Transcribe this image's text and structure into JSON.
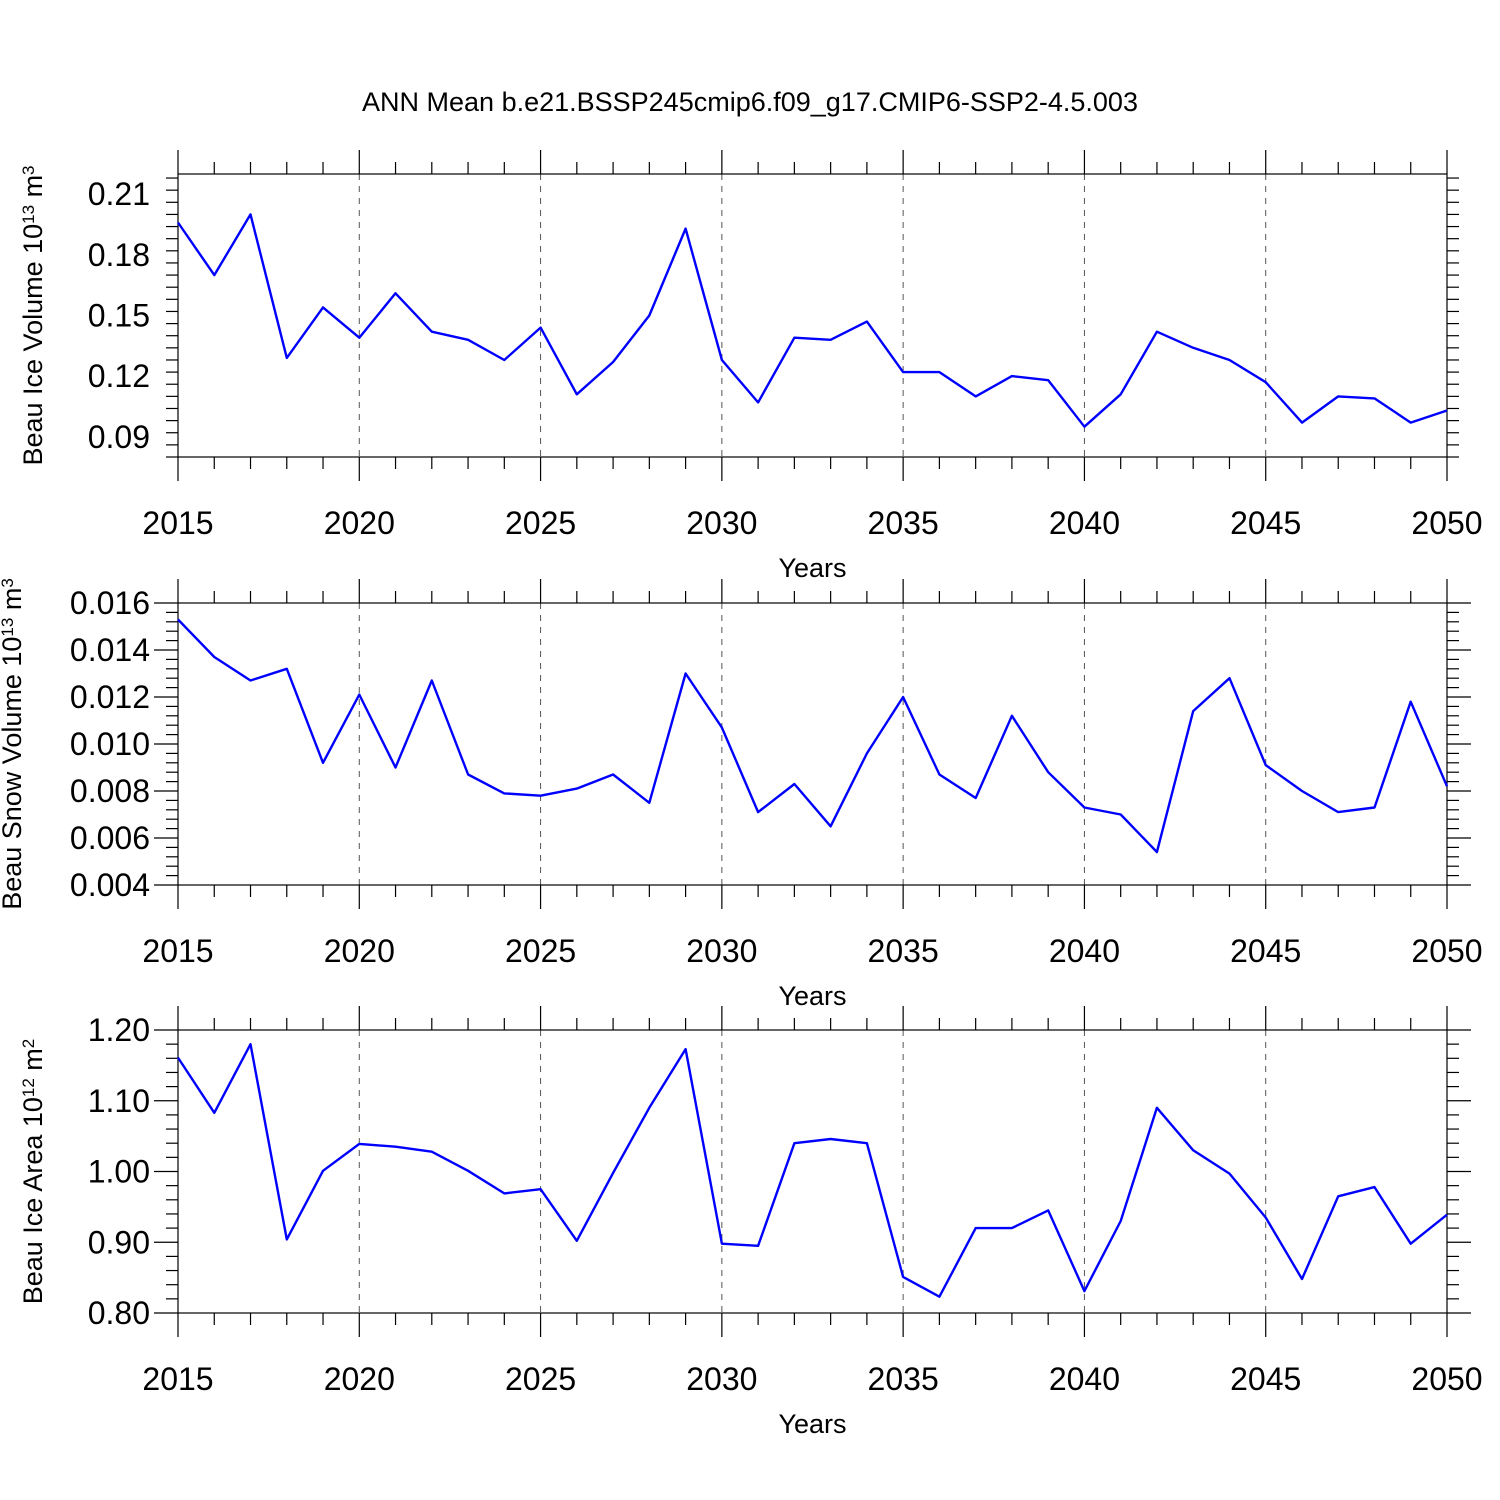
{
  "title": "ANN Mean b.e21.BSSP245cmip6.f09_g17.CMIP6-SSP2-4.5.003",
  "colors": {
    "line": "#0000ff",
    "grid": "#555555",
    "axis": "#000000"
  },
  "chart_data": [
    {
      "type": "line",
      "xlabel": "Years",
      "ylabel": "Beau Ice Volume 10",
      "ylabel_exp": "13",
      "ylabel_unit": " m",
      "ylabel_unit_exp": "3",
      "xlim": [
        2015,
        2050
      ],
      "ylim": [
        0.08,
        0.22
      ],
      "yticks": [
        0.09,
        0.12,
        0.15,
        0.18,
        0.21
      ],
      "yticklabels": [
        "0.09",
        "0.12",
        "0.15",
        "0.18",
        "0.21"
      ],
      "xticks": [
        2015,
        2020,
        2025,
        2030,
        2035,
        2040,
        2045,
        2050
      ],
      "xticklabels": [
        "2015",
        "2020",
        "2025",
        "2030",
        "2035",
        "2040",
        "2045",
        "2050"
      ],
      "grid": "vertical dashed at major x ticks",
      "x": [
        2015,
        2016,
        2017,
        2018,
        2019,
        2020,
        2021,
        2022,
        2023,
        2024,
        2025,
        2026,
        2027,
        2028,
        2029,
        2030,
        2031,
        2032,
        2033,
        2034,
        2035,
        2036,
        2037,
        2038,
        2039,
        2040,
        2041,
        2042,
        2043,
        2044,
        2045,
        2046,
        2047,
        2048,
        2049,
        2050
      ],
      "values": [
        0.196,
        0.17,
        0.2,
        0.129,
        0.154,
        0.139,
        0.161,
        0.142,
        0.138,
        0.128,
        0.144,
        0.111,
        0.127,
        0.15,
        0.193,
        0.128,
        0.107,
        0.139,
        0.138,
        0.147,
        0.122,
        0.122,
        0.11,
        0.12,
        0.118,
        0.095,
        0.111,
        0.142,
        0.134,
        0.128,
        0.117,
        0.097,
        0.11,
        0.109,
        0.097,
        0.103
      ]
    },
    {
      "type": "line",
      "xlabel": "Years",
      "ylabel": "Beau Snow Volume 10",
      "ylabel_exp": "13",
      "ylabel_unit": " m",
      "ylabel_unit_exp": "3",
      "xlim": [
        2015,
        2050
      ],
      "ylim": [
        0.004,
        0.016
      ],
      "yticks": [
        0.004,
        0.006,
        0.008,
        0.01,
        0.012,
        0.014,
        0.016
      ],
      "yticklabels": [
        "0.004",
        "0.006",
        "0.008",
        "0.010",
        "0.012",
        "0.014",
        "0.016"
      ],
      "xticks": [
        2015,
        2020,
        2025,
        2030,
        2035,
        2040,
        2045,
        2050
      ],
      "xticklabels": [
        "2015",
        "2020",
        "2025",
        "2030",
        "2035",
        "2040",
        "2045",
        "2050"
      ],
      "grid": "vertical dashed at major x ticks",
      "x": [
        2015,
        2016,
        2017,
        2018,
        2019,
        2020,
        2021,
        2022,
        2023,
        2024,
        2025,
        2026,
        2027,
        2028,
        2029,
        2030,
        2031,
        2032,
        2033,
        2034,
        2035,
        2036,
        2037,
        2038,
        2039,
        2040,
        2041,
        2042,
        2043,
        2044,
        2045,
        2046,
        2047,
        2048,
        2049,
        2050
      ],
      "values": [
        0.0153,
        0.0137,
        0.0127,
        0.0132,
        0.0092,
        0.0121,
        0.009,
        0.0127,
        0.0087,
        0.0079,
        0.0078,
        0.0081,
        0.0087,
        0.0075,
        0.013,
        0.0107,
        0.0071,
        0.0083,
        0.0065,
        0.0096,
        0.012,
        0.0087,
        0.0077,
        0.0112,
        0.0088,
        0.0073,
        0.007,
        0.0054,
        0.0114,
        0.0128,
        0.0091,
        0.008,
        0.0071,
        0.0073,
        0.0118,
        0.0082
      ]
    },
    {
      "type": "line",
      "xlabel": "Years",
      "ylabel": "Beau Ice Area 10",
      "ylabel_exp": "12",
      "ylabel_unit": " m",
      "ylabel_unit_exp": "2",
      "xlim": [
        2015,
        2050
      ],
      "ylim": [
        0.8,
        1.2
      ],
      "yticks": [
        0.8,
        0.9,
        1.0,
        1.1,
        1.2
      ],
      "yticklabels": [
        "0.80",
        "0.90",
        "1.00",
        "1.10",
        "1.20"
      ],
      "xticks": [
        2015,
        2020,
        2025,
        2030,
        2035,
        2040,
        2045,
        2050
      ],
      "xticklabels": [
        "2015",
        "2020",
        "2025",
        "2030",
        "2035",
        "2040",
        "2045",
        "2050"
      ],
      "grid": "vertical dashed at major x ticks",
      "x": [
        2015,
        2016,
        2017,
        2018,
        2019,
        2020,
        2021,
        2022,
        2023,
        2024,
        2025,
        2026,
        2027,
        2028,
        2029,
        2030,
        2031,
        2032,
        2033,
        2034,
        2035,
        2036,
        2037,
        2038,
        2039,
        2040,
        2041,
        2042,
        2043,
        2044,
        2045,
        2046,
        2047,
        2048,
        2049,
        2050
      ],
      "values": [
        1.161,
        1.083,
        1.18,
        0.904,
        1.001,
        1.039,
        1.035,
        1.028,
        1.001,
        0.969,
        0.975,
        0.902,
        0.998,
        1.09,
        1.173,
        0.898,
        0.895,
        1.04,
        1.046,
        1.04,
        0.851,
        0.823,
        0.92,
        0.92,
        0.945,
        0.831,
        0.93,
        1.09,
        1.03,
        0.997,
        0.935,
        0.848,
        0.965,
        0.978,
        0.898,
        0.939
      ]
    }
  ]
}
